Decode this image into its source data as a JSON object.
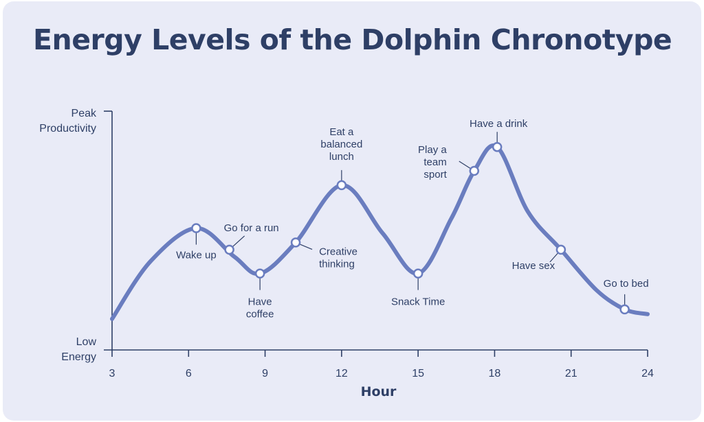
{
  "chart_data": {
    "type": "line",
    "title": "Energy Levels of the Dolphin Chronotype",
    "xlabel": "Hour",
    "xlim": [
      3,
      24
    ],
    "xticks": [
      3,
      6,
      9,
      12,
      15,
      18,
      21,
      24
    ],
    "ylim": [
      0,
      100
    ],
    "y_axis_labels": {
      "top": [
        "Peak",
        "Productivity"
      ],
      "bottom": [
        "Low",
        "Energy"
      ]
    },
    "curve": {
      "x": [
        3,
        4.5,
        6.3,
        7.8,
        8.8,
        10.2,
        12.0,
        13.6,
        15.0,
        16.3,
        17.2,
        18.1,
        19.3,
        20.6,
        22.0,
        23.1,
        24.0
      ],
      "y": [
        13,
        37,
        51,
        39,
        32,
        45,
        69,
        49,
        32,
        55,
        75,
        85,
        58,
        42,
        25,
        17,
        15
      ]
    },
    "points": [
      {
        "x": 6.3,
        "y": 51,
        "label": [
          "Wake up"
        ]
      },
      {
        "x": 7.6,
        "y": 42,
        "label": [
          "Go for a run"
        ]
      },
      {
        "x": 8.8,
        "y": 32,
        "label": [
          "Have",
          "coffee"
        ]
      },
      {
        "x": 10.2,
        "y": 45,
        "label": [
          "Creative",
          "thinking"
        ]
      },
      {
        "x": 12.0,
        "y": 69,
        "label": [
          "Eat a",
          "balanced",
          "lunch"
        ]
      },
      {
        "x": 15.0,
        "y": 32,
        "label": [
          "Snack Time"
        ]
      },
      {
        "x": 17.2,
        "y": 75,
        "label": [
          "Play a",
          "team",
          "sport"
        ]
      },
      {
        "x": 18.1,
        "y": 85,
        "label": [
          "Have a drink"
        ]
      },
      {
        "x": 20.6,
        "y": 42,
        "label": [
          "Have sex"
        ]
      },
      {
        "x": 23.1,
        "y": 17,
        "label": [
          "Go to bed"
        ]
      }
    ],
    "colors": {
      "line": "#6a7dbf",
      "text": "#2e3f66",
      "background": "#e9ebf7"
    }
  }
}
